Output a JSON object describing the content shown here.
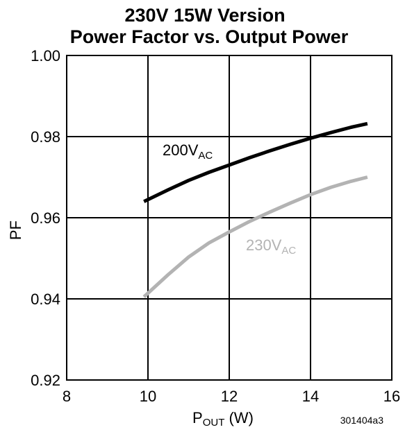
{
  "chart_data": {
    "type": "line",
    "title": "230V 15W Version",
    "subtitle": "Power Factor vs. Output Power",
    "xlabel": {
      "main": "P",
      "sub": "OUT",
      "rest": " (W)"
    },
    "ylabel": "PF",
    "xlim": [
      8,
      16
    ],
    "ylim": [
      0.92,
      1.0
    ],
    "x_ticks": [
      "8",
      "10",
      "12",
      "14",
      "16"
    ],
    "y_ticks": [
      "0.92",
      "0.94",
      "0.96",
      "0.98",
      "1.00"
    ],
    "grid": true,
    "legend": "inline",
    "series": [
      {
        "label_main": "200V",
        "label_sub": "AC",
        "color": "#000000",
        "x": [
          9.9,
          10.5,
          11.0,
          11.5,
          12.0,
          12.5,
          13.0,
          13.5,
          14.0,
          14.5,
          15.0,
          15.4
        ],
        "y": [
          0.964,
          0.9669,
          0.9692,
          0.9712,
          0.973,
          0.9748,
          0.9765,
          0.9781,
          0.9796,
          0.981,
          0.9823,
          0.9832
        ]
      },
      {
        "label_main": "230V",
        "label_sub": "AC",
        "color": "#b3b3b3",
        "x": [
          9.9,
          10.5,
          11.0,
          11.5,
          12.0,
          12.5,
          13.0,
          13.5,
          14.0,
          14.5,
          15.0,
          15.4
        ],
        "y": [
          0.9405,
          0.946,
          0.9503,
          0.9538,
          0.9565,
          0.9591,
          0.9614,
          0.9636,
          0.9657,
          0.9675,
          0.969,
          0.97
        ]
      }
    ],
    "figure_code": "301404a3"
  }
}
